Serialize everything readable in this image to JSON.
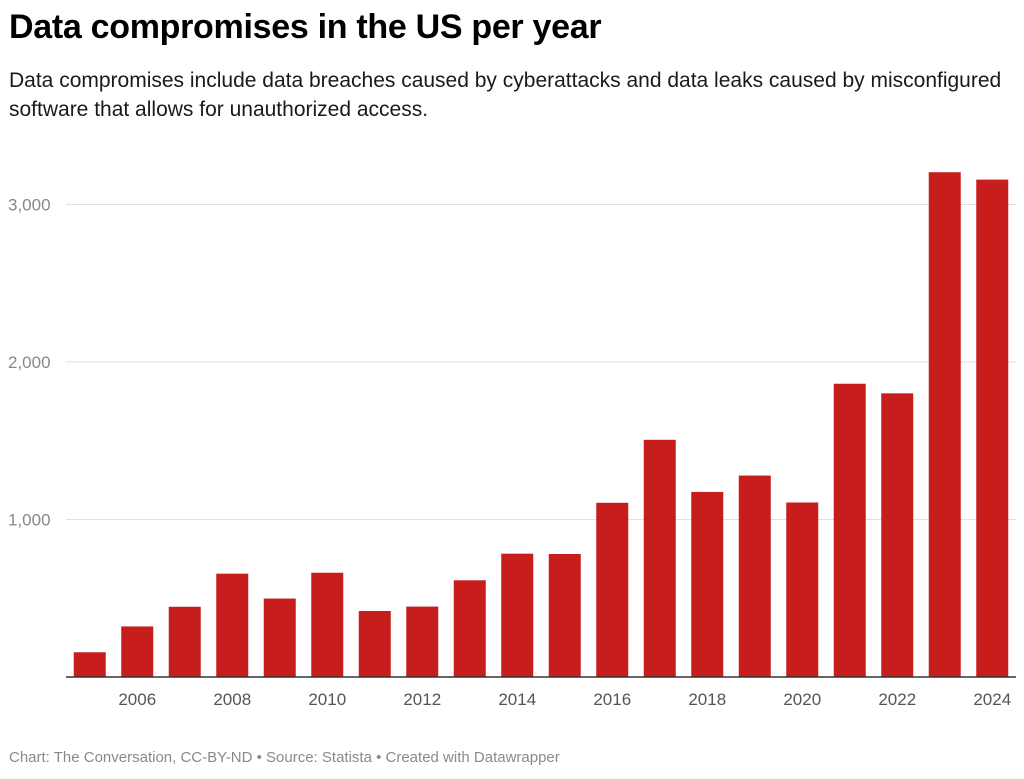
{
  "title": "Data compromises in the US per year",
  "subtitle": "Data compromises include data breaches caused by cyberattacks and data leaks caused by misconfigured software that allows for unauthorized access.",
  "footer": {
    "chart_credit": "Chart: The Conversation, CC-BY-ND",
    "separator": " • ",
    "source": "Source: Statista",
    "created": "Created with Datawrapper"
  },
  "colors": {
    "bar": "#c71d1d",
    "grid": "#e0e0e0",
    "axis": "#333333"
  },
  "chart_data": {
    "type": "bar",
    "title": "Data compromises in the US per year",
    "xlabel": "",
    "ylabel": "",
    "categories": [
      "2005",
      "2006",
      "2007",
      "2008",
      "2009",
      "2010",
      "2011",
      "2012",
      "2013",
      "2014",
      "2015",
      "2016",
      "2017",
      "2018",
      "2019",
      "2020",
      "2021",
      "2022",
      "2023",
      "2024"
    ],
    "values": [
      157,
      321,
      446,
      656,
      498,
      662,
      419,
      447,
      614,
      783,
      781,
      1106,
      1506,
      1175,
      1279,
      1108,
      1862,
      1801,
      3205,
      3158
    ],
    "x_tick_labels": [
      "2006",
      "2008",
      "2010",
      "2012",
      "2014",
      "2016",
      "2018",
      "2020",
      "2022",
      "2024"
    ],
    "y_ticks": [
      1000,
      2000,
      3000
    ],
    "y_tick_labels": [
      "1,000",
      "2,000",
      "3,000"
    ],
    "ylim": [
      0,
      3250
    ],
    "grid": true
  }
}
